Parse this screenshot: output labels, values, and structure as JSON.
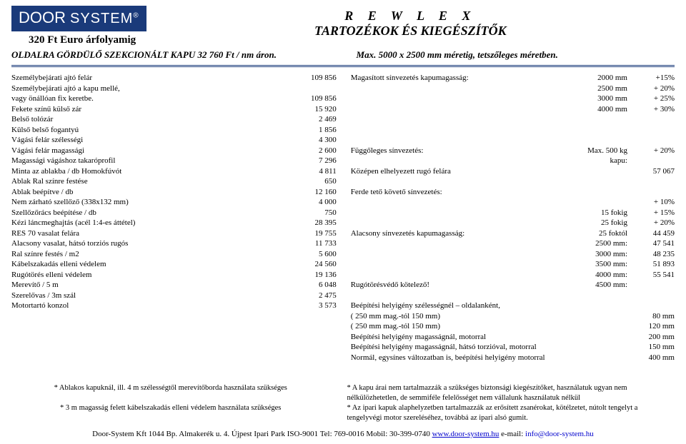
{
  "logo": {
    "part1": "DOOR",
    "part2": "SYSTEM",
    "reg": "®"
  },
  "rate_line": "320 Ft Euro árfolyamig",
  "title_line1": "R E W L E X",
  "title_line2": "TARTOZÉKOK ÉS KIEGÉSZÍTŐK",
  "sub_left": "OLDALRA GÖRDÜLŐ SZEKCIONÁLT KAPU 32 760 Ft / nm áron.",
  "sub_right": "Max. 5000 x 2500 mm méretig, tetszőleges méretben.",
  "left_items": [
    {
      "l": "Személybejárati ajtó felár",
      "v": "109 856"
    },
    {
      "l": "Személybejárati ajtó a kapu mellé,",
      "v": ""
    },
    {
      "l": "vagy önállóan fix keretbe.",
      "v": "109 856"
    },
    {
      "l": "Fekete színű külső zár",
      "v": "15 920"
    },
    {
      "l": "Belső tolózár",
      "v": "2 469"
    },
    {
      "l": "Külső belső fogantyú",
      "v": "1 856"
    },
    {
      "l": "Vágási felár szélességi",
      "v": "4 300"
    },
    {
      "l": "Vágási felár magassági",
      "v": "2 600"
    },
    {
      "l": "Magassági vágáshoz takaróprofil",
      "v": "7 296"
    },
    {
      "l": "Minta az ablakba / db  Homokfúvót",
      "v": "4 811"
    },
    {
      "l": "Ablak Ral színre festése",
      "v": "650"
    },
    {
      "l": "Ablak beépítve / db",
      "v": "12 160"
    },
    {
      "l": "Nem zárható szellőző (338x132 mm)",
      "v": "4 000"
    },
    {
      "l": "Szellőzőrács beépítése / db",
      "v": "750"
    },
    {
      "l": "Kézi láncmeghajtás (acél 1:4-es áttétel)",
      "v": "28 395"
    },
    {
      "l": "RES 70 vasalat felára",
      "v": "19 755"
    },
    {
      "l": "Alacsony vasalat, hátsó torziós rugós",
      "v": "11 733"
    },
    {
      "l": "Ral színre festés / m2",
      "v": "5 600"
    },
    {
      "l": "Kábelszakadás elleni védelem",
      "v": "24 560"
    },
    {
      "l": "Rugótörés elleni védelem",
      "v": "19 136"
    },
    {
      "l": "Merevítő / 5 m",
      "v": "6 048"
    },
    {
      "l": "Szerelővas / 3m szál",
      "v": "2 475"
    },
    {
      "l": "Motortartó konzol",
      "v": "3 573"
    }
  ],
  "right_items": [
    {
      "l": "Magasított sínvezetés kapumagasság:",
      "v1": "2000 mm",
      "v2": "+15%"
    },
    {
      "l": "",
      "v1": "2500 mm",
      "v2": "+ 20%"
    },
    {
      "l": "",
      "v1": "3000 mm",
      "v2": "+ 25%"
    },
    {
      "l": "",
      "v1": "4000 mm",
      "v2": "+ 30%"
    },
    {
      "l": "",
      "v1": "",
      "v2": ""
    },
    {
      "l": "",
      "v1": "",
      "v2": ""
    },
    {
      "l": "",
      "v1": "",
      "v2": ""
    },
    {
      "l": "Függőleges sínvezetés:",
      "v1": "Max. 500 kg kapu:",
      "v2": "+ 20%"
    },
    {
      "l": "",
      "v1": "",
      "v2": ""
    },
    {
      "l": "Középen elhelyezett rugó felára",
      "v1": "",
      "v2": "57 067"
    },
    {
      "l": "",
      "v1": "",
      "v2": ""
    },
    {
      "l": "Ferde tető követő sínvezetés:",
      "v1": "",
      "v2": ""
    },
    {
      "l": "",
      "v1": "15 fokig",
      "v2": "+ 10%"
    },
    {
      "l": "",
      "v1": "25 fokig",
      "v2": "+ 15%"
    },
    {
      "l": "",
      "v1": "25 foktól",
      "v2": "+ 20%"
    },
    {
      "l": "Alacsony sínvezetés kapumagasság:",
      "v1": "2500 mm:",
      "v2": "44 459"
    },
    {
      "l": "",
      "v1": "3000 mm:",
      "v2": "47 541"
    },
    {
      "l": "",
      "v1": "3500 mm:",
      "v2": "48 235"
    },
    {
      "l": "",
      "v1": "4000 mm:",
      "v2": "51 893"
    },
    {
      "l": "",
      "v1": "4500 mm:",
      "v2": "55 541"
    },
    {
      "l": "Rugótörésvédő kötelező!",
      "v1": "",
      "v2": ""
    },
    {
      "l": "",
      "v1": "",
      "v2": ""
    },
    {
      "l": "Beépítési helyigény szélességnél – oldalanként,",
      "v1": "",
      "v2": ""
    },
    {
      "l": "( 250 mm mag.-tól 150 mm)",
      "v1": "",
      "v2": "80 mm"
    },
    {
      "l": "( 250 mm mag.-tól 150 mm)",
      "v1": "",
      "v2": "120 mm"
    },
    {
      "l": "Beépítési helyigény magasságnál, motorral",
      "v1": "",
      "v2": "200 mm"
    },
    {
      "l": "Beépítési helyigény magasságnál, hátsó torzióval, motorral",
      "v1": "",
      "v2": "150 mm"
    },
    {
      "l": "Normál, egysínes változatban is, beépítési helyigény motorral",
      "v1": "",
      "v2": "400 mm"
    }
  ],
  "notes_left": [
    "* Ablakos kapuknál, ill. 4 m szélességtől merevítőborda használata szükséges",
    "",
    "* 3 m magasság felett kábelszakadás elleni védelem használata szükséges"
  ],
  "notes_right": [
    "* A kapu árai nem tartalmazzák a szükséges biztonsági kiegészítőket, használatuk ugyan nem nélkülözhetetlen, de semmiféle felelősséget nem vállalunk használatuk nélkül",
    "* Az ipari kapuk alaphelyzetben tartalmazzák az erősített zsanérokat, kötélzetet, nútolt tengelyt a tengelyvégi motor szereléséhez, továbbá az ipari alsó gumit."
  ],
  "footer": {
    "text1": "Door-System Kft  1044 Bp. Almakerék u. 4.  Újpest Ipari Park  ISO-9001  Tel: 769-0016  Mobil: 30-399-0740 ",
    "web": "www.door-system.hu",
    "text2": "  e-mail: ",
    "mail": "info@door-system.hu"
  }
}
